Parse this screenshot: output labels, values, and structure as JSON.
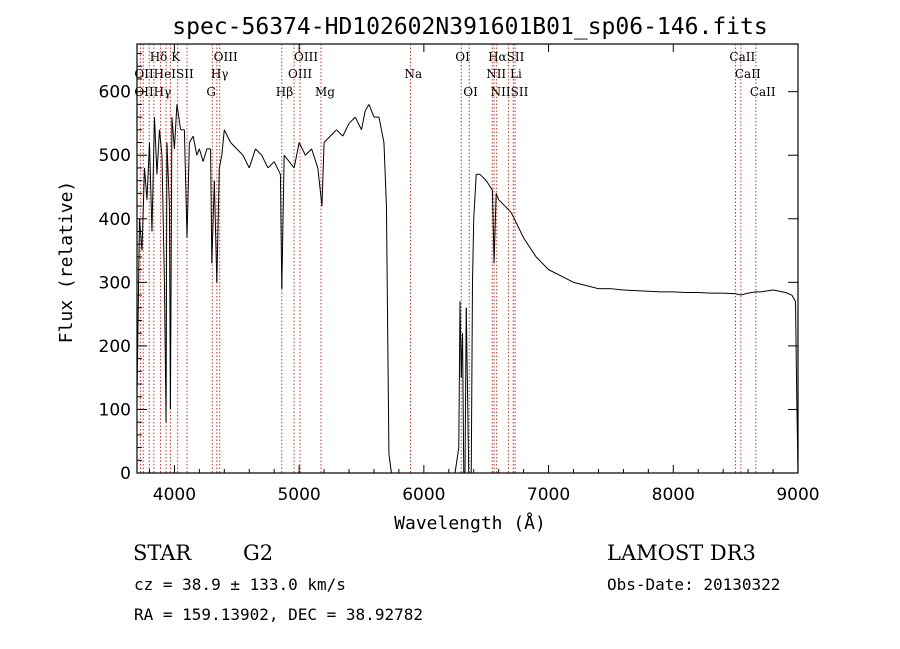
{
  "chart_data": {
    "type": "line",
    "title": "spec-56374-HD102602N391601B01_sp06-146.fits",
    "xlabel": "Wavelength (Å)",
    "ylabel": "Flux (relative)",
    "xlim": [
      3700,
      9000
    ],
    "ylim": [
      0,
      675
    ],
    "xticks": [
      4000,
      5000,
      6000,
      7000,
      8000,
      9000
    ],
    "yticks": [
      0,
      100,
      200,
      300,
      400,
      500,
      600
    ],
    "series": [
      {
        "name": "flux",
        "x": [
          3700,
          3720,
          3740,
          3760,
          3780,
          3800,
          3820,
          3840,
          3860,
          3880,
          3900,
          3920,
          3933,
          3940,
          3960,
          3968,
          3980,
          4000,
          4020,
          4050,
          4080,
          4101,
          4120,
          4150,
          4180,
          4200,
          4230,
          4260,
          4290,
          4300,
          4320,
          4340,
          4360,
          4380,
          4400,
          4450,
          4500,
          4550,
          4600,
          4650,
          4700,
          4750,
          4800,
          4850,
          4861,
          4880,
          4920,
          4960,
          5000,
          5050,
          5100,
          5150,
          5183,
          5200,
          5250,
          5300,
          5350,
          5400,
          5450,
          5500,
          5530,
          5560,
          5600,
          5640,
          5660,
          5680,
          5700,
          5720,
          5740,
          5760,
          5780,
          5800,
          5850,
          5900,
          5950,
          6000,
          6050,
          6100,
          6150,
          6200,
          6250,
          6280,
          6290,
          6300,
          6310,
          6320,
          6330,
          6340,
          6360,
          6380,
          6390,
          6400,
          6420,
          6450,
          6500,
          6550,
          6563,
          6580,
          6600,
          6650,
          6700,
          6750,
          6800,
          6900,
          7000,
          7100,
          7200,
          7300,
          7400,
          7500,
          7600,
          7700,
          7800,
          7900,
          8000,
          8100,
          8200,
          8300,
          8400,
          8500,
          8542,
          8600,
          8662,
          8700,
          8800,
          8900,
          8950,
          8980,
          8990,
          9000
        ],
        "values": [
          120,
          400,
          350,
          480,
          430,
          520,
          380,
          560,
          470,
          540,
          500,
          300,
          80,
          520,
          420,
          100,
          560,
          510,
          580,
          540,
          540,
          370,
          520,
          530,
          500,
          510,
          490,
          510,
          510,
          330,
          460,
          300,
          480,
          500,
          540,
          520,
          510,
          500,
          480,
          510,
          500,
          480,
          490,
          470,
          290,
          500,
          490,
          480,
          520,
          500,
          510,
          480,
          420,
          520,
          530,
          540,
          530,
          550,
          560,
          540,
          570,
          580,
          560,
          560,
          540,
          520,
          420,
          30,
          0,
          0,
          0,
          0,
          0,
          0,
          0,
          0,
          0,
          0,
          0,
          0,
          0,
          40,
          270,
          150,
          220,
          0,
          0,
          260,
          0,
          0,
          300,
          400,
          470,
          470,
          460,
          445,
          330,
          440,
          430,
          420,
          410,
          390,
          370,
          340,
          320,
          310,
          300,
          295,
          290,
          290,
          288,
          287,
          286,
          285,
          285,
          284,
          284,
          283,
          283,
          282,
          280,
          283,
          285,
          285,
          288,
          284,
          280,
          270,
          120,
          0
        ]
      }
    ],
    "lines": {
      "top": [
        {
          "label": "Hδ K",
          "x": 3850
        },
        {
          "label": "OIII",
          "x": 4363
        },
        {
          "label": "OIII",
          "x": 5007
        },
        {
          "label": "OI",
          "x": 6300
        },
        {
          "label": "HαSII",
          "x": 6563
        },
        {
          "label": "CaII",
          "x": 8498
        }
      ],
      "mid": [
        {
          "label": "OIIHeISII",
          "x": 3727
        },
        {
          "label": "Hγ",
          "x": 4340
        },
        {
          "label": "OIII",
          "x": 4959
        },
        {
          "label": "Na",
          "x": 5893
        },
        {
          "label": "NII Li",
          "x": 6548
        },
        {
          "label": "CaII",
          "x": 8542
        }
      ],
      "low": [
        {
          "label": "OIIHγ",
          "x": 3727
        },
        {
          "label": "G",
          "x": 4304
        },
        {
          "label": "Hβ",
          "x": 4861
        },
        {
          "label": "Mg",
          "x": 5175
        },
        {
          "label": "OI",
          "x": 6364
        },
        {
          "label": "NIISII",
          "x": 6584
        },
        {
          "label": "CaII",
          "x": 8662
        }
      ],
      "markers": [
        3727,
        3750,
        3798,
        3835,
        3889,
        3933,
        3968,
        4026,
        4101,
        4304,
        4340,
        4363,
        4861,
        4959,
        5007,
        5175,
        5893,
        6300,
        6364,
        6548,
        6563,
        6584,
        6678,
        6717,
        6731,
        8498,
        8542,
        8662
      ]
    }
  },
  "footer": {
    "class_label": "STAR",
    "subclass": "G2",
    "survey": "LAMOST DR3",
    "cz": "cz = 38.9 ± 133.0 km/s",
    "obs_date": "Obs-Date: 20130322",
    "radec": "RA = 159.13902, DEC =  38.92782"
  },
  "colors": {
    "line_marker": "#c0392b",
    "spectrum": "#000000",
    "axis": "#000000"
  }
}
